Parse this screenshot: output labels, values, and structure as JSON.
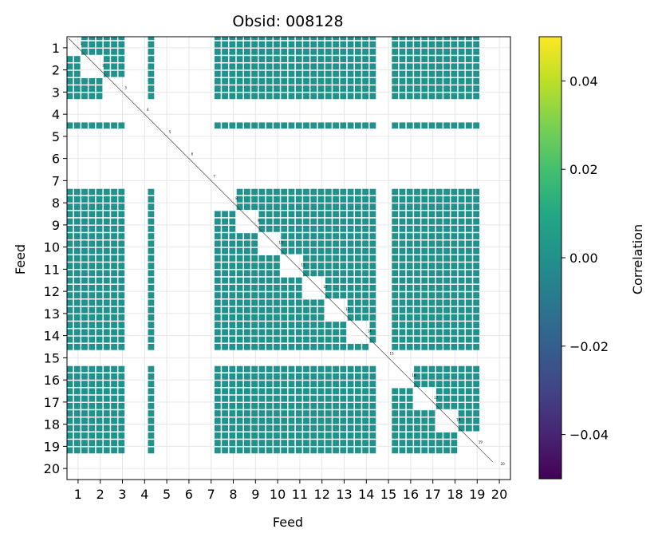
{
  "chart_data": {
    "type": "heatmap",
    "title": "Obsid: 008128",
    "xlabel": "Feed",
    "ylabel": "Feed",
    "x_tick_labels": [
      "1",
      "2",
      "3",
      "4",
      "5",
      "6",
      "7",
      "8",
      "9",
      "10",
      "11",
      "12",
      "13",
      "14",
      "15",
      "16",
      "17",
      "18",
      "19",
      "20"
    ],
    "y_tick_labels": [
      "1",
      "2",
      "3",
      "4",
      "5",
      "6",
      "7",
      "8",
      "9",
      "10",
      "11",
      "12",
      "13",
      "14",
      "15",
      "16",
      "17",
      "18",
      "19",
      "20"
    ],
    "active_feeds": [
      1,
      2,
      3,
      5,
      8,
      9,
      10,
      11,
      12,
      13,
      14,
      15,
      16,
      17,
      18,
      19
    ],
    "partial_feeds": [
      5,
      15
    ],
    "feed_labels": [
      "1",
      "2",
      "3",
      "4",
      "5",
      "6",
      "7",
      "8",
      "9",
      "10",
      "11",
      "12",
      "13",
      "14",
      "15",
      "16",
      "17",
      "18",
      "19",
      "20"
    ],
    "cell_value": 0.0,
    "cell_color": "#21918c",
    "grid": true,
    "colorbar": {
      "label": "Correlation",
      "vmin": -0.05,
      "vmax": 0.05,
      "ticks": [
        0.04,
        0.02,
        0.0,
        -0.02,
        -0.04
      ],
      "tick_labels": [
        "0.04",
        "0.02",
        "0.00",
        "−0.02",
        "−0.04"
      ],
      "colormap": [
        "#440154",
        "#482475",
        "#414487",
        "#355f8d",
        "#2a788e",
        "#21918c",
        "#22a884",
        "#44bf70",
        "#7ad151",
        "#bddf26",
        "#fde725"
      ]
    }
  }
}
